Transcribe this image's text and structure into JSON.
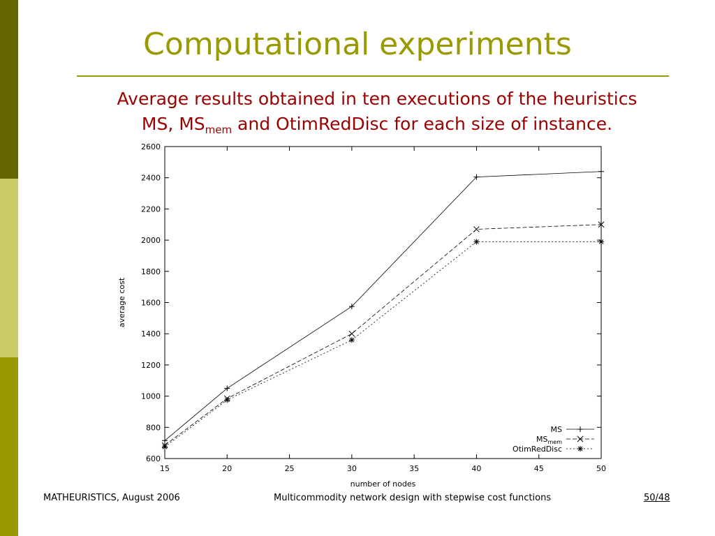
{
  "slide": {
    "title": "Computational experiments",
    "subtitle_line1": "Average results obtained in ten executions of the heuristics",
    "subtitle_line2_a": "MS, MS",
    "subtitle_line2_sub": "mem",
    "subtitle_line2_b": " and OtimRedDisc for each size of instance.",
    "colors": {
      "title": "#999900",
      "subtitle": "#990000",
      "bar_dark": "#666600",
      "bar_light": "#cccc66",
      "bar_mid": "#999900"
    }
  },
  "footer": {
    "left": "MATHEURISTICS, August 2006",
    "center": "Multicommodity network design with stepwise cost functions",
    "right": "50/48"
  },
  "chart_data": {
    "type": "line",
    "title": "",
    "xlabel": "number of nodes",
    "ylabel": "average cost",
    "xlim": [
      15,
      50
    ],
    "ylim": [
      600,
      2600
    ],
    "xticks": [
      15,
      20,
      25,
      30,
      35,
      40,
      45,
      50
    ],
    "yticks": [
      600,
      800,
      1000,
      1200,
      1400,
      1600,
      1800,
      2000,
      2200,
      2400,
      2600
    ],
    "legend_position": "bottom-right",
    "grid": false,
    "x": [
      15,
      20,
      30,
      40,
      50
    ],
    "series": [
      {
        "name": "MS",
        "name_sub": "",
        "marker": "+",
        "dash": "",
        "values": [
          715,
          1050,
          1575,
          2405,
          2440
        ]
      },
      {
        "name": "MS",
        "name_sub": "mem",
        "marker": "x",
        "dash": "6,3",
        "values": [
          685,
          985,
          1400,
          2070,
          2100
        ]
      },
      {
        "name": "OtimRedDisc",
        "name_sub": "",
        "marker": "*",
        "dash": "2,3",
        "values": [
          675,
          975,
          1360,
          1990,
          1990
        ]
      }
    ]
  }
}
